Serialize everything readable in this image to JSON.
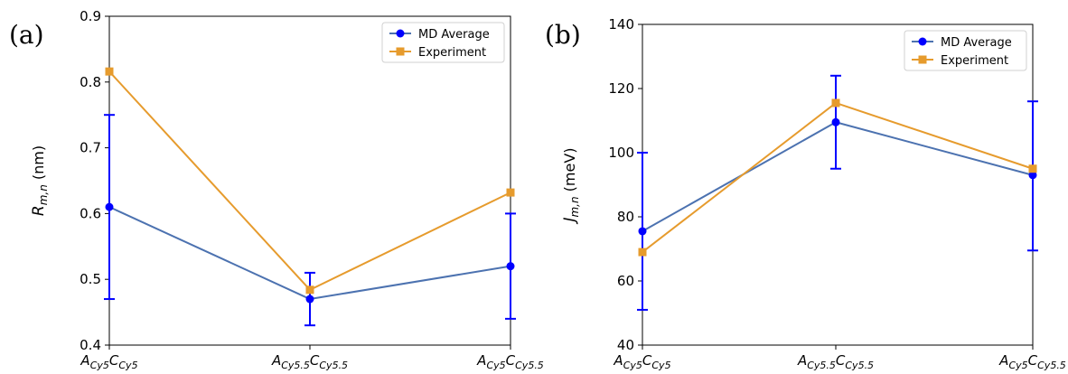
{
  "chart_data": [
    {
      "type": "line",
      "panel_label": "(a)",
      "categories": [
        "A_{Cy5}C_{Cy5}",
        "A_{Cy5.5}C_{Cy5.5}",
        "A_{Cy5}C_{Cy5.5}"
      ],
      "category_parts": [
        {
          "a": "Cy5",
          "c": "Cy5"
        },
        {
          "a": "Cy5.5",
          "c": "Cy5.5"
        },
        {
          "a": "Cy5",
          "c": "Cy5.5"
        }
      ],
      "ylabel": {
        "symbol": "R",
        "sub": "m,n",
        "unit": " (nm)"
      },
      "ylim": [
        0.4,
        0.9
      ],
      "yticks": [
        0.4,
        0.5,
        0.6,
        0.7,
        0.8,
        0.9
      ],
      "ytick_labels": [
        "0.4",
        "0.5",
        "0.6",
        "0.7",
        "0.8",
        "0.9"
      ],
      "legend_position": "top-right",
      "grid": false,
      "series": [
        {
          "name": "MD Average",
          "values": [
            0.61,
            0.47,
            0.52
          ],
          "err_low": [
            0.47,
            0.43,
            0.44
          ],
          "err_high": [
            0.75,
            0.51,
            0.6
          ],
          "marker": "circle",
          "color": "#4c72b0",
          "marker_color": "#0000ff"
        },
        {
          "name": "Experiment",
          "values": [
            0.816,
            0.484,
            0.632
          ],
          "marker": "square",
          "color": "#e69b2d",
          "marker_color": "#e69b2d"
        }
      ]
    },
    {
      "type": "line",
      "panel_label": "(b)",
      "categories": [
        "A_{Cy5}C_{Cy5}",
        "A_{Cy5.5}C_{Cy5.5}",
        "A_{Cy5}C_{Cy5.5}"
      ],
      "category_parts": [
        {
          "a": "Cy5",
          "c": "Cy5"
        },
        {
          "a": "Cy5.5",
          "c": "Cy5.5"
        },
        {
          "a": "Cy5",
          "c": "Cy5.5"
        }
      ],
      "ylabel": {
        "symbol": "J",
        "sub": "m,n",
        "unit": " (meV)"
      },
      "ylim": [
        40,
        140
      ],
      "yticks": [
        40,
        60,
        80,
        100,
        120,
        140
      ],
      "ytick_labels": [
        "40",
        "60",
        "80",
        "100",
        "120",
        "140"
      ],
      "legend_position": "top-right",
      "grid": false,
      "series": [
        {
          "name": "MD Average",
          "values": [
            75.5,
            109.5,
            93
          ],
          "err_low": [
            51,
            95,
            69.5
          ],
          "err_high": [
            100,
            124,
            116
          ],
          "marker": "circle",
          "color": "#4c72b0",
          "marker_color": "#0000ff"
        },
        {
          "name": "Experiment",
          "values": [
            69,
            115.5,
            95
          ],
          "marker": "square",
          "color": "#e69b2d",
          "marker_color": "#e69b2d"
        }
      ]
    }
  ]
}
